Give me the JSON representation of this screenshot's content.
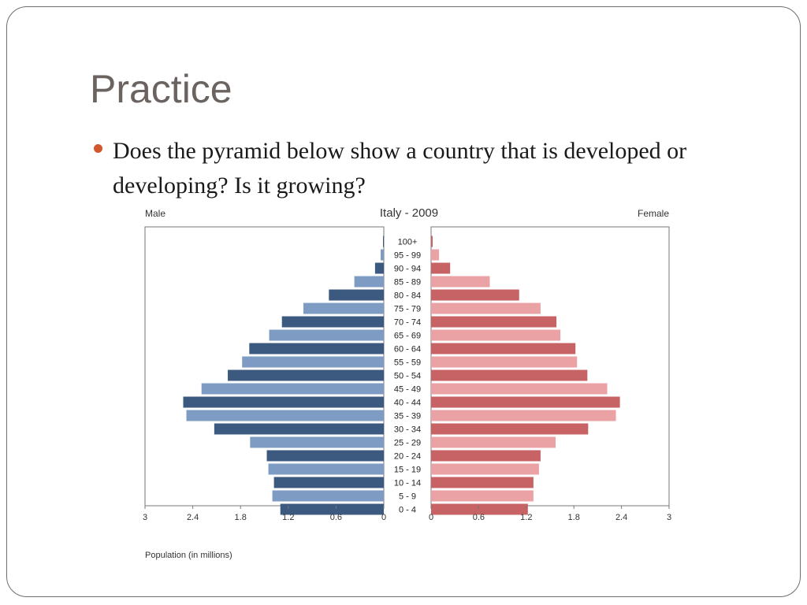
{
  "slide": {
    "title": "Practice",
    "bullet": "Does the pyramid below show a country that is developed or developing?  Is it growing?",
    "bullet_color": "#d1582d"
  },
  "chart_data": {
    "type": "bar",
    "orientation": "horizontal",
    "title": "Italy - 2009",
    "left_label": "Male",
    "right_label": "Female",
    "xlabel": "Population (in millions)",
    "xlim": [
      0,
      3
    ],
    "xticks_left": [
      "3",
      "2.4",
      "1.8",
      "1.2",
      "0.6",
      "0"
    ],
    "xticks_right": [
      "0",
      "0.6",
      "1.2",
      "1.8",
      "2.4",
      "3"
    ],
    "categories": [
      "100+",
      "95 - 99",
      "90 - 94",
      "85 - 89",
      "80 - 84",
      "75 - 79",
      "70 - 74",
      "65 - 69",
      "60 - 64",
      "55 - 59",
      "50 - 54",
      "45 - 49",
      "40 - 44",
      "35 - 39",
      "30 - 34",
      "25 - 29",
      "20 - 24",
      "15 - 19",
      "10 - 14",
      "5 - 9",
      "0 - 4"
    ],
    "series": [
      {
        "name": "Male",
        "values": [
          0.01,
          0.04,
          0.11,
          0.37,
          0.69,
          1.01,
          1.28,
          1.44,
          1.69,
          1.78,
          1.96,
          2.29,
          2.52,
          2.48,
          2.13,
          1.68,
          1.47,
          1.45,
          1.38,
          1.4,
          1.3
        ],
        "colors": [
          "#7e9cc3",
          "#3c5a80"
        ]
      },
      {
        "name": "Female",
        "values": [
          0.02,
          0.1,
          0.24,
          0.74,
          1.11,
          1.38,
          1.58,
          1.63,
          1.82,
          1.84,
          1.97,
          2.22,
          2.38,
          2.33,
          1.98,
          1.57,
          1.38,
          1.36,
          1.29,
          1.29,
          1.22
        ],
        "colors": [
          "#eaa2a4",
          "#c76265"
        ]
      }
    ],
    "grid": false
  }
}
